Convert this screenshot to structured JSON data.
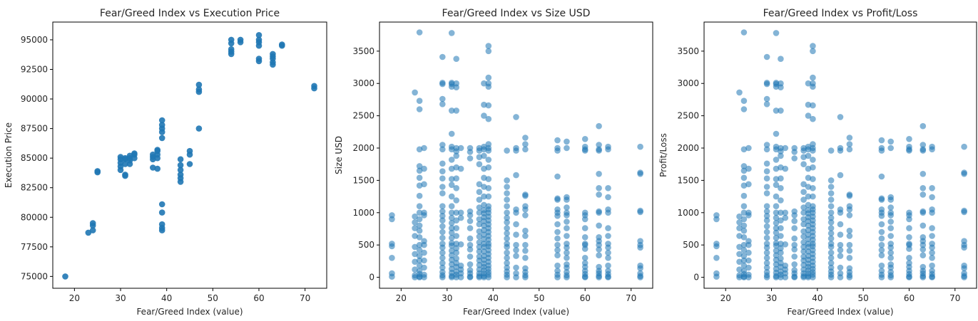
{
  "chart_data": [
    {
      "type": "scatter",
      "title": "Fear/Greed Index vs Execution Price",
      "xlabel": "Fear/Greed Index (value)",
      "ylabel": "Execution Price",
      "xlim": [
        15.3,
        74.7
      ],
      "ylim": [
        74000,
        96500
      ],
      "xticks": [
        20,
        30,
        40,
        50,
        60,
        70
      ],
      "yticks": [
        75000,
        77500,
        80000,
        82500,
        85000,
        87500,
        90000,
        92500,
        95000
      ],
      "grid": false,
      "point_color": "#1f77b4",
      "point_alpha": 0.9,
      "points": [
        [
          18,
          75000
        ],
        [
          23,
          78700
        ],
        [
          24,
          78900
        ],
        [
          24,
          79300
        ],
        [
          24,
          79500
        ],
        [
          25,
          83800
        ],
        [
          25,
          83900
        ],
        [
          30,
          84000
        ],
        [
          30,
          84300
        ],
        [
          30,
          84600
        ],
        [
          30,
          84900
        ],
        [
          30,
          85100
        ],
        [
          31,
          84500
        ],
        [
          31,
          84900
        ],
        [
          31,
          85000
        ],
        [
          31,
          83500
        ],
        [
          31,
          83600
        ],
        [
          32,
          84500
        ],
        [
          32,
          84800
        ],
        [
          32,
          85000
        ],
        [
          32,
          85200
        ],
        [
          33,
          85000
        ],
        [
          33,
          85300
        ],
        [
          33,
          85400
        ],
        [
          37,
          84200
        ],
        [
          37,
          84900
        ],
        [
          37,
          85100
        ],
        [
          37,
          85300
        ],
        [
          38,
          84100
        ],
        [
          38,
          85000
        ],
        [
          38,
          85300
        ],
        [
          38,
          85600
        ],
        [
          38,
          85700
        ],
        [
          39,
          86700
        ],
        [
          39,
          87200
        ],
        [
          39,
          87500
        ],
        [
          39,
          87800
        ],
        [
          39,
          88200
        ],
        [
          39,
          81100
        ],
        [
          39,
          80400
        ],
        [
          39,
          79400
        ],
        [
          39,
          79100
        ],
        [
          39,
          78900
        ],
        [
          43,
          83000
        ],
        [
          43,
          83300
        ],
        [
          43,
          83600
        ],
        [
          43,
          84000
        ],
        [
          43,
          84400
        ],
        [
          43,
          84900
        ],
        [
          45,
          84500
        ],
        [
          45,
          85300
        ],
        [
          45,
          85600
        ],
        [
          47,
          87500
        ],
        [
          47,
          90600
        ],
        [
          47,
          90800
        ],
        [
          47,
          91200
        ],
        [
          54,
          93800
        ],
        [
          54,
          94000
        ],
        [
          54,
          94200
        ],
        [
          54,
          94700
        ],
        [
          54,
          95000
        ],
        [
          56,
          94800
        ],
        [
          56,
          95000
        ],
        [
          60,
          93200
        ],
        [
          60,
          93400
        ],
        [
          60,
          94500
        ],
        [
          60,
          94800
        ],
        [
          60,
          95000
        ],
        [
          60,
          95400
        ],
        [
          63,
          92900
        ],
        [
          63,
          93100
        ],
        [
          63,
          93400
        ],
        [
          63,
          93600
        ],
        [
          63,
          93800
        ],
        [
          65,
          94500
        ],
        [
          65,
          94600
        ],
        [
          72,
          90900
        ],
        [
          72,
          91100
        ]
      ]
    },
    {
      "type": "scatter",
      "title": "Fear/Greed Index vs Size USD",
      "xlabel": "Fear/Greed Index (value)",
      "ylabel": "Size USD",
      "xlim": [
        15.3,
        74.7
      ],
      "ylim": [
        -170,
        3950
      ],
      "xticks": [
        20,
        30,
        40,
        50,
        60,
        70
      ],
      "yticks": [
        0,
        500,
        1000,
        1500,
        2000,
        2500,
        3000,
        3500
      ],
      "grid": false,
      "point_color": "#1f77b4",
      "point_alpha": 0.55
    },
    {
      "type": "scatter",
      "title": "Fear/Greed Index vs Profit/Loss",
      "xlabel": "Fear/Greed Index (value)",
      "ylabel": "Profit/Loss",
      "xlim": [
        15.3,
        74.7
      ],
      "ylim": [
        -170,
        3950
      ],
      "xticks": [
        20,
        30,
        40,
        50,
        60,
        70
      ],
      "yticks": [
        0,
        500,
        1000,
        1500,
        2000,
        2500,
        3000,
        3500
      ],
      "grid": false,
      "point_color": "#1f77b4",
      "point_alpha": 0.55
    }
  ],
  "scatter_points_usd": [
    [
      18,
      960
    ],
    [
      18,
      900
    ],
    [
      18,
      520
    ],
    [
      18,
      480
    ],
    [
      18,
      300
    ],
    [
      18,
      60
    ],
    [
      18,
      10
    ],
    [
      23,
      2860
    ],
    [
      23,
      940
    ],
    [
      23,
      850
    ],
    [
      23,
      760
    ],
    [
      23,
      640
    ],
    [
      23,
      470
    ],
    [
      23,
      360
    ],
    [
      23,
      240
    ],
    [
      23,
      120
    ],
    [
      23,
      30
    ],
    [
      23,
      0
    ],
    [
      24,
      3790
    ],
    [
      24,
      2730
    ],
    [
      24,
      2600
    ],
    [
      24,
      1980
    ],
    [
      24,
      1720
    ],
    [
      24,
      1650
    ],
    [
      24,
      1540
    ],
    [
      24,
      1420
    ],
    [
      24,
      1260
    ],
    [
      24,
      1100
    ],
    [
      24,
      1000
    ],
    [
      24,
      900
    ],
    [
      24,
      800
    ],
    [
      24,
      720
    ],
    [
      24,
      620
    ],
    [
      24,
      500
    ],
    [
      24,
      420
    ],
    [
      24,
      330
    ],
    [
      24,
      260
    ],
    [
      24,
      180
    ],
    [
      24,
      100
    ],
    [
      24,
      50
    ],
    [
      24,
      10
    ],
    [
      24,
      0
    ],
    [
      25,
      2000
    ],
    [
      25,
      1680
    ],
    [
      25,
      1440
    ],
    [
      25,
      1000
    ],
    [
      25,
      960
    ],
    [
      25,
      560
    ],
    [
      25,
      500
    ],
    [
      25,
      380
    ],
    [
      25,
      260
    ],
    [
      25,
      150
    ],
    [
      25,
      40
    ],
    [
      25,
      0
    ],
    [
      29,
      3410
    ],
    [
      29,
      3010
    ],
    [
      29,
      2990
    ],
    [
      29,
      2760
    ],
    [
      29,
      2680
    ],
    [
      29,
      2050
    ],
    [
      29,
      1980
    ],
    [
      29,
      1760
    ],
    [
      29,
      1640
    ],
    [
      29,
      1530
    ],
    [
      29,
      1400
    ],
    [
      29,
      1300
    ],
    [
      29,
      1100
    ],
    [
      29,
      1020
    ],
    [
      29,
      950
    ],
    [
      29,
      880
    ],
    [
      29,
      790
    ],
    [
      29,
      700
    ],
    [
      29,
      610
    ],
    [
      29,
      520
    ],
    [
      29,
      460
    ],
    [
      29,
      380
    ],
    [
      29,
      300
    ],
    [
      29,
      220
    ],
    [
      29,
      150
    ],
    [
      29,
      80
    ],
    [
      29,
      30
    ],
    [
      29,
      0
    ],
    [
      31,
      3780
    ],
    [
      31,
      3010
    ],
    [
      31,
      2990
    ],
    [
      31,
      2950
    ],
    [
      31,
      2580
    ],
    [
      31,
      2220
    ],
    [
      31,
      2020
    ],
    [
      31,
      1980
    ],
    [
      31,
      1820
    ],
    [
      31,
      1680
    ],
    [
      31,
      1520
    ],
    [
      31,
      1430
    ],
    [
      31,
      1250
    ],
    [
      31,
      1100
    ],
    [
      31,
      1000
    ],
    [
      31,
      920
    ],
    [
      31,
      840
    ],
    [
      31,
      760
    ],
    [
      31,
      690
    ],
    [
      31,
      610
    ],
    [
      31,
      530
    ],
    [
      31,
      490
    ],
    [
      31,
      410
    ],
    [
      31,
      340
    ],
    [
      31,
      270
    ],
    [
      31,
      200
    ],
    [
      31,
      130
    ],
    [
      31,
      70
    ],
    [
      31,
      20
    ],
    [
      31,
      0
    ],
    [
      32,
      3380
    ],
    [
      32,
      3000
    ],
    [
      32,
      2940
    ],
    [
      32,
      2580
    ],
    [
      32,
      2000
    ],
    [
      32,
      1950
    ],
    [
      32,
      1880
    ],
    [
      32,
      1700
    ],
    [
      32,
      1530
    ],
    [
      32,
      1380
    ],
    [
      32,
      1190
    ],
    [
      32,
      1000
    ],
    [
      32,
      880
    ],
    [
      32,
      760
    ],
    [
      32,
      640
    ],
    [
      32,
      520
    ],
    [
      32,
      450
    ],
    [
      32,
      380
    ],
    [
      32,
      290
    ],
    [
      32,
      220
    ],
    [
      32,
      160
    ],
    [
      32,
      90
    ],
    [
      32,
      40
    ],
    [
      32,
      0
    ],
    [
      33,
      2000
    ],
    [
      33,
      1680
    ],
    [
      33,
      1000
    ],
    [
      33,
      920
    ],
    [
      33,
      510
    ],
    [
      33,
      180
    ],
    [
      33,
      120
    ],
    [
      33,
      60
    ],
    [
      33,
      0
    ],
    [
      35,
      2000
    ],
    [
      35,
      1940
    ],
    [
      35,
      1840
    ],
    [
      35,
      1020
    ],
    [
      35,
      960
    ],
    [
      35,
      870
    ],
    [
      35,
      760
    ],
    [
      35,
      600
    ],
    [
      35,
      500
    ],
    [
      35,
      430
    ],
    [
      35,
      320
    ],
    [
      35,
      200
    ],
    [
      35,
      110
    ],
    [
      35,
      60
    ],
    [
      35,
      10
    ],
    [
      35,
      0
    ],
    [
      37,
      2000
    ],
    [
      37,
      1960
    ],
    [
      37,
      1860
    ],
    [
      37,
      1750
    ],
    [
      37,
      1440
    ],
    [
      37,
      1320
    ],
    [
      37,
      1200
    ],
    [
      37,
      1080
    ],
    [
      37,
      1000
    ],
    [
      37,
      900
    ],
    [
      37,
      820
    ],
    [
      37,
      710
    ],
    [
      37,
      630
    ],
    [
      37,
      540
    ],
    [
      37,
      470
    ],
    [
      37,
      400
    ],
    [
      37,
      320
    ],
    [
      37,
      260
    ],
    [
      37,
      190
    ],
    [
      37,
      120
    ],
    [
      37,
      60
    ],
    [
      37,
      20
    ],
    [
      37,
      0
    ],
    [
      38,
      3000
    ],
    [
      38,
      2670
    ],
    [
      38,
      2500
    ],
    [
      38,
      2020
    ],
    [
      38,
      1980
    ],
    [
      38,
      1880
    ],
    [
      38,
      1680
    ],
    [
      38,
      1540
    ],
    [
      38,
      1400
    ],
    [
      38,
      1250
    ],
    [
      38,
      1120
    ],
    [
      38,
      1040
    ],
    [
      38,
      990
    ],
    [
      38,
      930
    ],
    [
      38,
      870
    ],
    [
      38,
      800
    ],
    [
      38,
      730
    ],
    [
      38,
      660
    ],
    [
      38,
      590
    ],
    [
      38,
      520
    ],
    [
      38,
      470
    ],
    [
      38,
      400
    ],
    [
      38,
      330
    ],
    [
      38,
      270
    ],
    [
      38,
      210
    ],
    [
      38,
      160
    ],
    [
      38,
      110
    ],
    [
      38,
      60
    ],
    [
      38,
      20
    ],
    [
      38,
      0
    ],
    [
      39,
      3580
    ],
    [
      39,
      3500
    ],
    [
      39,
      3090
    ],
    [
      39,
      3000
    ],
    [
      39,
      2950
    ],
    [
      39,
      2660
    ],
    [
      39,
      2450
    ],
    [
      39,
      2060
    ],
    [
      39,
      2000
    ],
    [
      39,
      1960
    ],
    [
      39,
      1820
    ],
    [
      39,
      1700
    ],
    [
      39,
      1520
    ],
    [
      39,
      1380
    ],
    [
      39,
      1250
    ],
    [
      39,
      1100
    ],
    [
      39,
      1050
    ],
    [
      39,
      1000
    ],
    [
      39,
      940
    ],
    [
      39,
      880
    ],
    [
      39,
      820
    ],
    [
      39,
      760
    ],
    [
      39,
      700
    ],
    [
      39,
      640
    ],
    [
      39,
      580
    ],
    [
      39,
      520
    ],
    [
      39,
      480
    ],
    [
      39,
      420
    ],
    [
      39,
      360
    ],
    [
      39,
      300
    ],
    [
      39,
      240
    ],
    [
      39,
      180
    ],
    [
      39,
      130
    ],
    [
      39,
      80
    ],
    [
      39,
      40
    ],
    [
      39,
      0
    ],
    [
      43,
      1960
    ],
    [
      43,
      1500
    ],
    [
      43,
      1400
    ],
    [
      43,
      1300
    ],
    [
      43,
      1200
    ],
    [
      43,
      1100
    ],
    [
      43,
      1000
    ],
    [
      43,
      920
    ],
    [
      43,
      850
    ],
    [
      43,
      760
    ],
    [
      43,
      680
    ],
    [
      43,
      600
    ],
    [
      43,
      520
    ],
    [
      43,
      470
    ],
    [
      43,
      380
    ],
    [
      43,
      300
    ],
    [
      43,
      220
    ],
    [
      43,
      150
    ],
    [
      43,
      90
    ],
    [
      43,
      40
    ],
    [
      43,
      0
    ],
    [
      45,
      2480
    ],
    [
      45,
      2000
    ],
    [
      45,
      1960
    ],
    [
      45,
      1580
    ],
    [
      45,
      1050
    ],
    [
      45,
      1000
    ],
    [
      45,
      820
    ],
    [
      45,
      660
    ],
    [
      45,
      500
    ],
    [
      45,
      420
    ],
    [
      45,
      330
    ],
    [
      45,
      150
    ],
    [
      45,
      60
    ],
    [
      45,
      0
    ],
    [
      47,
      2160
    ],
    [
      47,
      2060
    ],
    [
      47,
      1980
    ],
    [
      47,
      1280
    ],
    [
      47,
      1260
    ],
    [
      47,
      1100
    ],
    [
      47,
      1050
    ],
    [
      47,
      960
    ],
    [
      47,
      720
    ],
    [
      47,
      640
    ],
    [
      47,
      500
    ],
    [
      47,
      410
    ],
    [
      47,
      300
    ],
    [
      47,
      140
    ],
    [
      47,
      80
    ],
    [
      47,
      30
    ],
    [
      47,
      0
    ],
    [
      54,
      2120
    ],
    [
      54,
      2000
    ],
    [
      54,
      1960
    ],
    [
      54,
      1560
    ],
    [
      54,
      1220
    ],
    [
      54,
      1200
    ],
    [
      54,
      1050
    ],
    [
      54,
      1000
    ],
    [
      54,
      950
    ],
    [
      54,
      820
    ],
    [
      54,
      700
    ],
    [
      54,
      600
    ],
    [
      54,
      500
    ],
    [
      54,
      420
    ],
    [
      54,
      340
    ],
    [
      54,
      180
    ],
    [
      54,
      100
    ],
    [
      54,
      40
    ],
    [
      54,
      0
    ],
    [
      56,
      2100
    ],
    [
      56,
      2000
    ],
    [
      56,
      1240
    ],
    [
      56,
      1200
    ],
    [
      56,
      1080
    ],
    [
      56,
      1000
    ],
    [
      56,
      960
    ],
    [
      56,
      860
    ],
    [
      56,
      760
    ],
    [
      56,
      640
    ],
    [
      56,
      520
    ],
    [
      56,
      460
    ],
    [
      56,
      380
    ],
    [
      56,
      300
    ],
    [
      56,
      200
    ],
    [
      56,
      150
    ],
    [
      56,
      80
    ],
    [
      56,
      30
    ],
    [
      56,
      0
    ],
    [
      60,
      2140
    ],
    [
      60,
      2020
    ],
    [
      60,
      1980
    ],
    [
      60,
      1960
    ],
    [
      60,
      1000
    ],
    [
      60,
      960
    ],
    [
      60,
      900
    ],
    [
      60,
      760
    ],
    [
      60,
      620
    ],
    [
      60,
      520
    ],
    [
      60,
      500
    ],
    [
      60,
      440
    ],
    [
      60,
      300
    ],
    [
      60,
      220
    ],
    [
      60,
      160
    ],
    [
      60,
      100
    ],
    [
      60,
      50
    ],
    [
      60,
      10
    ],
    [
      60,
      0
    ],
    [
      63,
      2340
    ],
    [
      63,
      2050
    ],
    [
      63,
      1980
    ],
    [
      63,
      1960
    ],
    [
      63,
      1600
    ],
    [
      63,
      1380
    ],
    [
      63,
      1280
    ],
    [
      63,
      1020
    ],
    [
      63,
      1000
    ],
    [
      63,
      800
    ],
    [
      63,
      620
    ],
    [
      63,
      560
    ],
    [
      63,
      500
    ],
    [
      63,
      430
    ],
    [
      63,
      340
    ],
    [
      63,
      160
    ],
    [
      63,
      100
    ],
    [
      63,
      60
    ],
    [
      63,
      20
    ],
    [
      63,
      0
    ],
    [
      65,
      2020
    ],
    [
      65,
      1980
    ],
    [
      65,
      1380
    ],
    [
      65,
      1240
    ],
    [
      65,
      1050
    ],
    [
      65,
      1000
    ],
    [
      65,
      760
    ],
    [
      65,
      640
    ],
    [
      65,
      520
    ],
    [
      65,
      460
    ],
    [
      65,
      380
    ],
    [
      65,
      300
    ],
    [
      65,
      180
    ],
    [
      65,
      100
    ],
    [
      65,
      50
    ],
    [
      65,
      10
    ],
    [
      65,
      0
    ],
    [
      72,
      2020
    ],
    [
      72,
      1620
    ],
    [
      72,
      1600
    ],
    [
      72,
      1030
    ],
    [
      72,
      1010
    ],
    [
      72,
      560
    ],
    [
      72,
      500
    ],
    [
      72,
      460
    ],
    [
      72,
      180
    ],
    [
      72,
      140
    ],
    [
      72,
      60
    ],
    [
      72,
      20
    ],
    [
      72,
      0
    ]
  ]
}
